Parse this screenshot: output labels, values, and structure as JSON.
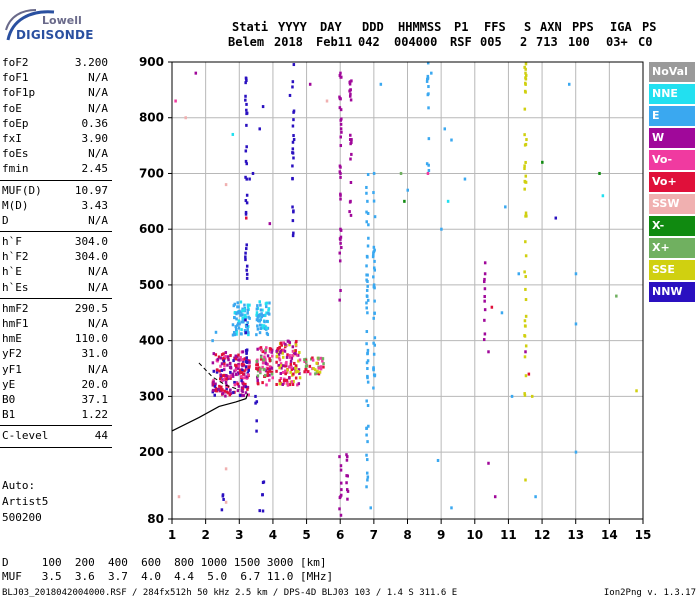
{
  "logo": {
    "top": "Lowell",
    "main": "DIGISONDE"
  },
  "header": {
    "labels": [
      "Stati",
      "YYYY",
      "DAY",
      "DDD",
      "HHMMSS",
      "P1",
      "FFS",
      "S",
      "AXN",
      "PPS",
      "IGA",
      "PS"
    ],
    "values": [
      "Belem",
      "2018",
      "Feb11",
      "042",
      "004000",
      "RSF",
      "005",
      "2",
      "713",
      "100",
      "03+",
      "C0"
    ]
  },
  "params": [
    {
      "label": "foF2",
      "value": "3.200"
    },
    {
      "label": "foF1",
      "value": "N/A"
    },
    {
      "label": "foF1p",
      "value": "N/A"
    },
    {
      "label": "foE",
      "value": "N/A"
    },
    {
      "label": "foEp",
      "value": "0.36"
    },
    {
      "label": "fxI",
      "value": "3.90"
    },
    {
      "label": "foEs",
      "value": "N/A"
    },
    {
      "label": "fmin",
      "value": "2.45"
    },
    {
      "sep": true
    },
    {
      "label": "MUF(D)",
      "value": "10.97"
    },
    {
      "label": "M(D)",
      "value": "3.43"
    },
    {
      "label": "D",
      "value": "N/A"
    },
    {
      "sep": true
    },
    {
      "label": "h`F",
      "value": "304.0"
    },
    {
      "label": "h`F2",
      "value": "304.0"
    },
    {
      "label": "h`E",
      "value": "N/A"
    },
    {
      "label": "h`Es",
      "value": "N/A"
    },
    {
      "sep": true
    },
    {
      "label": "hmF2",
      "value": "290.5"
    },
    {
      "label": "hmF1",
      "value": "N/A"
    },
    {
      "label": "hmE",
      "value": "110.0"
    },
    {
      "label": "yF2",
      "value": "31.0"
    },
    {
      "label": "yF1",
      "value": "N/A"
    },
    {
      "label": "yE",
      "value": "20.0"
    },
    {
      "label": "B0",
      "value": "37.1"
    },
    {
      "label": "B1",
      "value": "1.22"
    },
    {
      "sep": true
    },
    {
      "label": "C-level",
      "value": "44"
    },
    {
      "sep": true
    }
  ],
  "auto": [
    "Auto:",
    "Artist5",
    "500200"
  ],
  "legend": [
    {
      "label": "NoVal",
      "color": "#9a9a9a"
    },
    {
      "label": "NNE",
      "color": "#22e0f0"
    },
    {
      "label": "E",
      "color": "#3aa8f0"
    },
    {
      "label": "W",
      "color": "#a0089a"
    },
    {
      "label": "Vo-",
      "color": "#f03aa0"
    },
    {
      "label": "Vo+",
      "color": "#e0103a"
    },
    {
      "label": "SSW",
      "color": "#f0b0b0"
    },
    {
      "label": "X-",
      "color": "#108a10"
    },
    {
      "label": "X+",
      "color": "#70b060"
    },
    {
      "label": "SSE",
      "color": "#d0d010"
    },
    {
      "label": "NNW",
      "color": "#2a10c0"
    }
  ],
  "footer": {
    "d_row": "D     100  200  400  600  800 1000 1500 3000 [km]",
    "muf_row": "MUF   3.5  3.6  3.7  4.0  4.4  5.0  6.7 11.0 [MHz]",
    "file_line": "BLJ03_2018042004000.RSF / 284fx512h 50 kHz 2.5 km / DPS-4D BLJ03 103 / 1.4 S 311.6 E",
    "version": "Ion2Png v. 1.3.17"
  },
  "chart_data": {
    "type": "scatter",
    "xlim": [
      1,
      15
    ],
    "ylim": [
      80,
      900
    ],
    "x_ticks": [
      "1",
      "2",
      "3",
      "4",
      "5",
      "6",
      "7",
      "8",
      "9",
      "10",
      "11",
      "12",
      "13",
      "14",
      "15"
    ],
    "y_ticks": [
      "80",
      "200",
      "300",
      "400",
      "500",
      "600",
      "700",
      "800",
      "900"
    ],
    "y_tick_values": [
      80,
      200,
      300,
      400,
      500,
      600,
      700,
      800,
      900
    ],
    "trace_line": [
      [
        1.0,
        238
      ],
      [
        1.8,
        262
      ],
      [
        2.4,
        282
      ],
      [
        2.9,
        290
      ],
      [
        3.2,
        296
      ],
      [
        3.25,
        305
      ]
    ],
    "dashed_trace": [
      [
        1.8,
        360
      ],
      [
        2.2,
        335
      ],
      [
        2.6,
        320
      ],
      [
        3.0,
        312
      ]
    ],
    "points": [
      {
        "x": 2.3,
        "y": 310,
        "c": "Vo+"
      },
      {
        "x": 2.4,
        "y": 318,
        "c": "Vo+"
      },
      {
        "x": 2.5,
        "y": 305,
        "c": "W"
      },
      {
        "x": 2.6,
        "y": 325,
        "c": "W"
      },
      {
        "x": 2.7,
        "y": 335,
        "c": "Vo-"
      },
      {
        "x": 2.8,
        "y": 340,
        "c": "W"
      },
      {
        "x": 2.9,
        "y": 355,
        "c": "Vo+"
      },
      {
        "x": 3.0,
        "y": 365,
        "c": "W"
      },
      {
        "x": 3.1,
        "y": 380,
        "c": "W"
      },
      {
        "x": 2.9,
        "y": 420,
        "c": "E"
      },
      {
        "x": 3.0,
        "y": 430,
        "c": "E"
      },
      {
        "x": 3.2,
        "y": 425,
        "c": "E"
      },
      {
        "x": 3.3,
        "y": 440,
        "c": "E"
      },
      {
        "x": 3.6,
        "y": 435,
        "c": "E"
      },
      {
        "x": 3.7,
        "y": 445,
        "c": "E"
      },
      {
        "x": 2.2,
        "y": 400,
        "c": "E"
      },
      {
        "x": 2.3,
        "y": 415,
        "c": "E"
      },
      {
        "x": 3.5,
        "y": 350,
        "c": "Vo+"
      },
      {
        "x": 3.7,
        "y": 360,
        "c": "Vo-"
      },
      {
        "x": 4.1,
        "y": 345,
        "c": "Vo+"
      },
      {
        "x": 4.3,
        "y": 355,
        "c": "W"
      },
      {
        "x": 4.5,
        "y": 370,
        "c": "Vo-"
      },
      {
        "x": 4.6,
        "y": 340,
        "c": "Vo+"
      },
      {
        "x": 5.0,
        "y": 355,
        "c": "X+"
      },
      {
        "x": 5.2,
        "y": 350,
        "c": "SSE"
      },
      {
        "x": 3.2,
        "y": 620,
        "c": "Vo+"
      },
      {
        "x": 3.3,
        "y": 690,
        "c": "NNW"
      },
      {
        "x": 3.4,
        "y": 700,
        "c": "NNW"
      },
      {
        "x": 3.2,
        "y": 870,
        "c": "NNW"
      },
      {
        "x": 3.6,
        "y": 780,
        "c": "NNW"
      },
      {
        "x": 3.7,
        "y": 820,
        "c": "NNW"
      },
      {
        "x": 4.5,
        "y": 840,
        "c": "NNW"
      },
      {
        "x": 6.0,
        "y": 880,
        "c": "W"
      },
      {
        "x": 6.0,
        "y": 700,
        "c": "W"
      },
      {
        "x": 6.0,
        "y": 600,
        "c": "W"
      },
      {
        "x": 6.3,
        "y": 850,
        "c": "W"
      },
      {
        "x": 6.3,
        "y": 650,
        "c": "W"
      },
      {
        "x": 6.8,
        "y": 650,
        "c": "E"
      },
      {
        "x": 6.8,
        "y": 550,
        "c": "E"
      },
      {
        "x": 6.8,
        "y": 450,
        "c": "E"
      },
      {
        "x": 6.8,
        "y": 350,
        "c": "E"
      },
      {
        "x": 7.0,
        "y": 700,
        "c": "E"
      },
      {
        "x": 7.0,
        "y": 500,
        "c": "E"
      },
      {
        "x": 7.8,
        "y": 700,
        "c": "X+"
      },
      {
        "x": 7.9,
        "y": 650,
        "c": "X-"
      },
      {
        "x": 8.0,
        "y": 670,
        "c": "E"
      },
      {
        "x": 8.6,
        "y": 700,
        "c": "Vo-"
      },
      {
        "x": 8.7,
        "y": 880,
        "c": "E"
      },
      {
        "x": 9.0,
        "y": 600,
        "c": "E"
      },
      {
        "x": 9.1,
        "y": 780,
        "c": "E"
      },
      {
        "x": 9.2,
        "y": 650,
        "c": "NNE"
      },
      {
        "x": 9.3,
        "y": 760,
        "c": "E"
      },
      {
        "x": 10.3,
        "y": 520,
        "c": "W"
      },
      {
        "x": 10.4,
        "y": 380,
        "c": "W"
      },
      {
        "x": 10.5,
        "y": 460,
        "c": "Vo+"
      },
      {
        "x": 10.9,
        "y": 640,
        "c": "E"
      },
      {
        "x": 10.8,
        "y": 450,
        "c": "E"
      },
      {
        "x": 11.1,
        "y": 300,
        "c": "E"
      },
      {
        "x": 11.3,
        "y": 520,
        "c": "E"
      },
      {
        "x": 11.5,
        "y": 880,
        "c": "SSE"
      },
      {
        "x": 11.5,
        "y": 380,
        "c": "W"
      },
      {
        "x": 11.6,
        "y": 340,
        "c": "Vo+"
      },
      {
        "x": 11.7,
        "y": 300,
        "c": "SSE"
      },
      {
        "x": 12.0,
        "y": 720,
        "c": "X-"
      },
      {
        "x": 12.4,
        "y": 620,
        "c": "NNW"
      },
      {
        "x": 12.8,
        "y": 860,
        "c": "E"
      },
      {
        "x": 13.0,
        "y": 520,
        "c": "E"
      },
      {
        "x": 13.0,
        "y": 430,
        "c": "E"
      },
      {
        "x": 13.7,
        "y": 700,
        "c": "X-"
      },
      {
        "x": 13.8,
        "y": 660,
        "c": "NNE"
      },
      {
        "x": 14.2,
        "y": 480,
        "c": "X+"
      },
      {
        "x": 14.8,
        "y": 310,
        "c": "SSE"
      },
      {
        "x": 1.4,
        "y": 800,
        "c": "SSW"
      },
      {
        "x": 1.1,
        "y": 830,
        "c": "Vo-"
      },
      {
        "x": 1.7,
        "y": 880,
        "c": "W"
      },
      {
        "x": 2.6,
        "y": 680,
        "c": "SSW"
      },
      {
        "x": 2.8,
        "y": 770,
        "c": "NNE"
      },
      {
        "x": 3.9,
        "y": 610,
        "c": "W"
      },
      {
        "x": 5.1,
        "y": 860,
        "c": "W"
      },
      {
        "x": 5.6,
        "y": 830,
        "c": "SSW"
      },
      {
        "x": 7.2,
        "y": 860,
        "c": "E"
      },
      {
        "x": 9.7,
        "y": 690,
        "c": "E"
      },
      {
        "x": 2.6,
        "y": 110,
        "c": "SSW"
      },
      {
        "x": 3.6,
        "y": 95,
        "c": "NNW"
      },
      {
        "x": 6.0,
        "y": 120,
        "c": "W"
      },
      {
        "x": 6.8,
        "y": 150,
        "c": "E"
      },
      {
        "x": 6.9,
        "y": 100,
        "c": "E"
      },
      {
        "x": 9.3,
        "y": 100,
        "c": "E"
      },
      {
        "x": 10.6,
        "y": 120,
        "c": "W"
      },
      {
        "x": 10.4,
        "y": 180,
        "c": "W"
      },
      {
        "x": 11.5,
        "y": 150,
        "c": "SSE"
      },
      {
        "x": 11.8,
        "y": 120,
        "c": "E"
      },
      {
        "x": 13.0,
        "y": 200,
        "c": "E"
      },
      {
        "x": 1.2,
        "y": 120,
        "c": "SSW"
      },
      {
        "x": 2.6,
        "y": 170,
        "c": "SSW"
      },
      {
        "x": 8.9,
        "y": 185,
        "c": "E"
      }
    ],
    "columns": [
      {
        "x": 3.2,
        "y0": 360,
        "y1": 900,
        "c": "NNW"
      },
      {
        "x": 4.6,
        "y0": 580,
        "y1": 900,
        "c": "NNW"
      },
      {
        "x": 6.0,
        "y0": 450,
        "y1": 900,
        "c": "W"
      },
      {
        "x": 6.3,
        "y0": 620,
        "y1": 900,
        "c": "W"
      },
      {
        "x": 6.8,
        "y0": 80,
        "y1": 700,
        "c": "E"
      },
      {
        "x": 7.0,
        "y0": 300,
        "y1": 720,
        "c": "E"
      },
      {
        "x": 8.6,
        "y0": 700,
        "y1": 900,
        "c": "E"
      },
      {
        "x": 10.3,
        "y0": 400,
        "y1": 540,
        "c": "W"
      },
      {
        "x": 11.5,
        "y0": 300,
        "y1": 900,
        "c": "SSE"
      },
      {
        "x": 3.5,
        "y0": 230,
        "y1": 300,
        "c": "NNW"
      },
      {
        "x": 3.7,
        "y0": 80,
        "y1": 150,
        "c": "NNW"
      },
      {
        "x": 2.5,
        "y0": 80,
        "y1": 130,
        "c": "NNW"
      },
      {
        "x": 6.0,
        "y0": 80,
        "y1": 200,
        "c": "W"
      },
      {
        "x": 6.2,
        "y0": 80,
        "y1": 200,
        "c": "W"
      }
    ],
    "clusters": [
      {
        "x0": 2.2,
        "x1": 3.3,
        "y0": 300,
        "y1": 380,
        "colors": [
          "Vo+",
          "W",
          "Vo-",
          "W",
          "Vo+",
          "NNW"
        ]
      },
      {
        "x0": 2.8,
        "x1": 3.3,
        "y0": 410,
        "y1": 470,
        "colors": [
          "E",
          "E",
          "NNE"
        ]
      },
      {
        "x0": 3.5,
        "x1": 3.9,
        "y0": 410,
        "y1": 470,
        "colors": [
          "E",
          "E",
          "NNE"
        ]
      },
      {
        "x0": 3.5,
        "x1": 4.0,
        "y0": 320,
        "y1": 390,
        "colors": [
          "Vo+",
          "W",
          "Vo-",
          "X+"
        ]
      },
      {
        "x0": 4.1,
        "x1": 4.8,
        "y0": 320,
        "y1": 400,
        "colors": [
          "Vo+",
          "W",
          "Vo-",
          "SSE"
        ]
      },
      {
        "x0": 4.9,
        "x1": 5.5,
        "y0": 340,
        "y1": 370,
        "colors": [
          "Vo-",
          "X+",
          "SSE",
          "Vo+"
        ]
      }
    ]
  }
}
